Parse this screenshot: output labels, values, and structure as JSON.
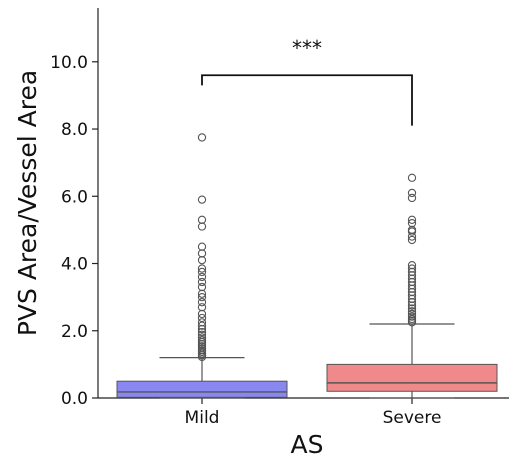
{
  "chart_data": {
    "type": "box",
    "xlabel": "AS",
    "ylabel": "PVS Area/Vessel Area",
    "ylim": [
      0,
      11.6
    ],
    "yticks": [
      0.0,
      2.0,
      4.0,
      6.0,
      8.0,
      10.0
    ],
    "ytick_labels": [
      "0.0",
      "2.0",
      "4.0",
      "6.0",
      "8.0",
      "10.0"
    ],
    "categories": [
      "Mild",
      "Severe"
    ],
    "boxes": [
      {
        "name": "Mild",
        "color": "#8888f0",
        "q1": 0.02,
        "median": 0.18,
        "q3": 0.5,
        "whisker_low": 0.0,
        "whisker_high": 1.2,
        "outliers": [
          1.22,
          1.27,
          1.32,
          1.37,
          1.42,
          1.48,
          1.54,
          1.6,
          1.66,
          1.72,
          1.8,
          1.88,
          1.96,
          2.05,
          2.15,
          2.25,
          2.38,
          2.5,
          2.7,
          2.85,
          3.0,
          3.1,
          3.3,
          3.45,
          3.6,
          3.75,
          3.85,
          4.1,
          4.3,
          4.5,
          5.1,
          5.3,
          5.9,
          7.75
        ]
      },
      {
        "name": "Severe",
        "color": "#f08a8a",
        "q1": 0.2,
        "median": 0.45,
        "q3": 1.0,
        "whisker_low": 0.0,
        "whisker_high": 2.2,
        "outliers": [
          2.25,
          2.3,
          2.35,
          2.42,
          2.5,
          2.58,
          2.66,
          2.75,
          2.85,
          2.95,
          3.05,
          3.15,
          3.25,
          3.35,
          3.45,
          3.55,
          3.65,
          3.75,
          3.85,
          3.95,
          4.7,
          4.8,
          4.95,
          5.0,
          5.2,
          5.3,
          5.95,
          6.1,
          6.55
        ]
      }
    ],
    "significance": {
      "label": "***",
      "bracket_top": 9.6,
      "left_bottom": 9.3,
      "right_bottom": 8.1
    }
  }
}
